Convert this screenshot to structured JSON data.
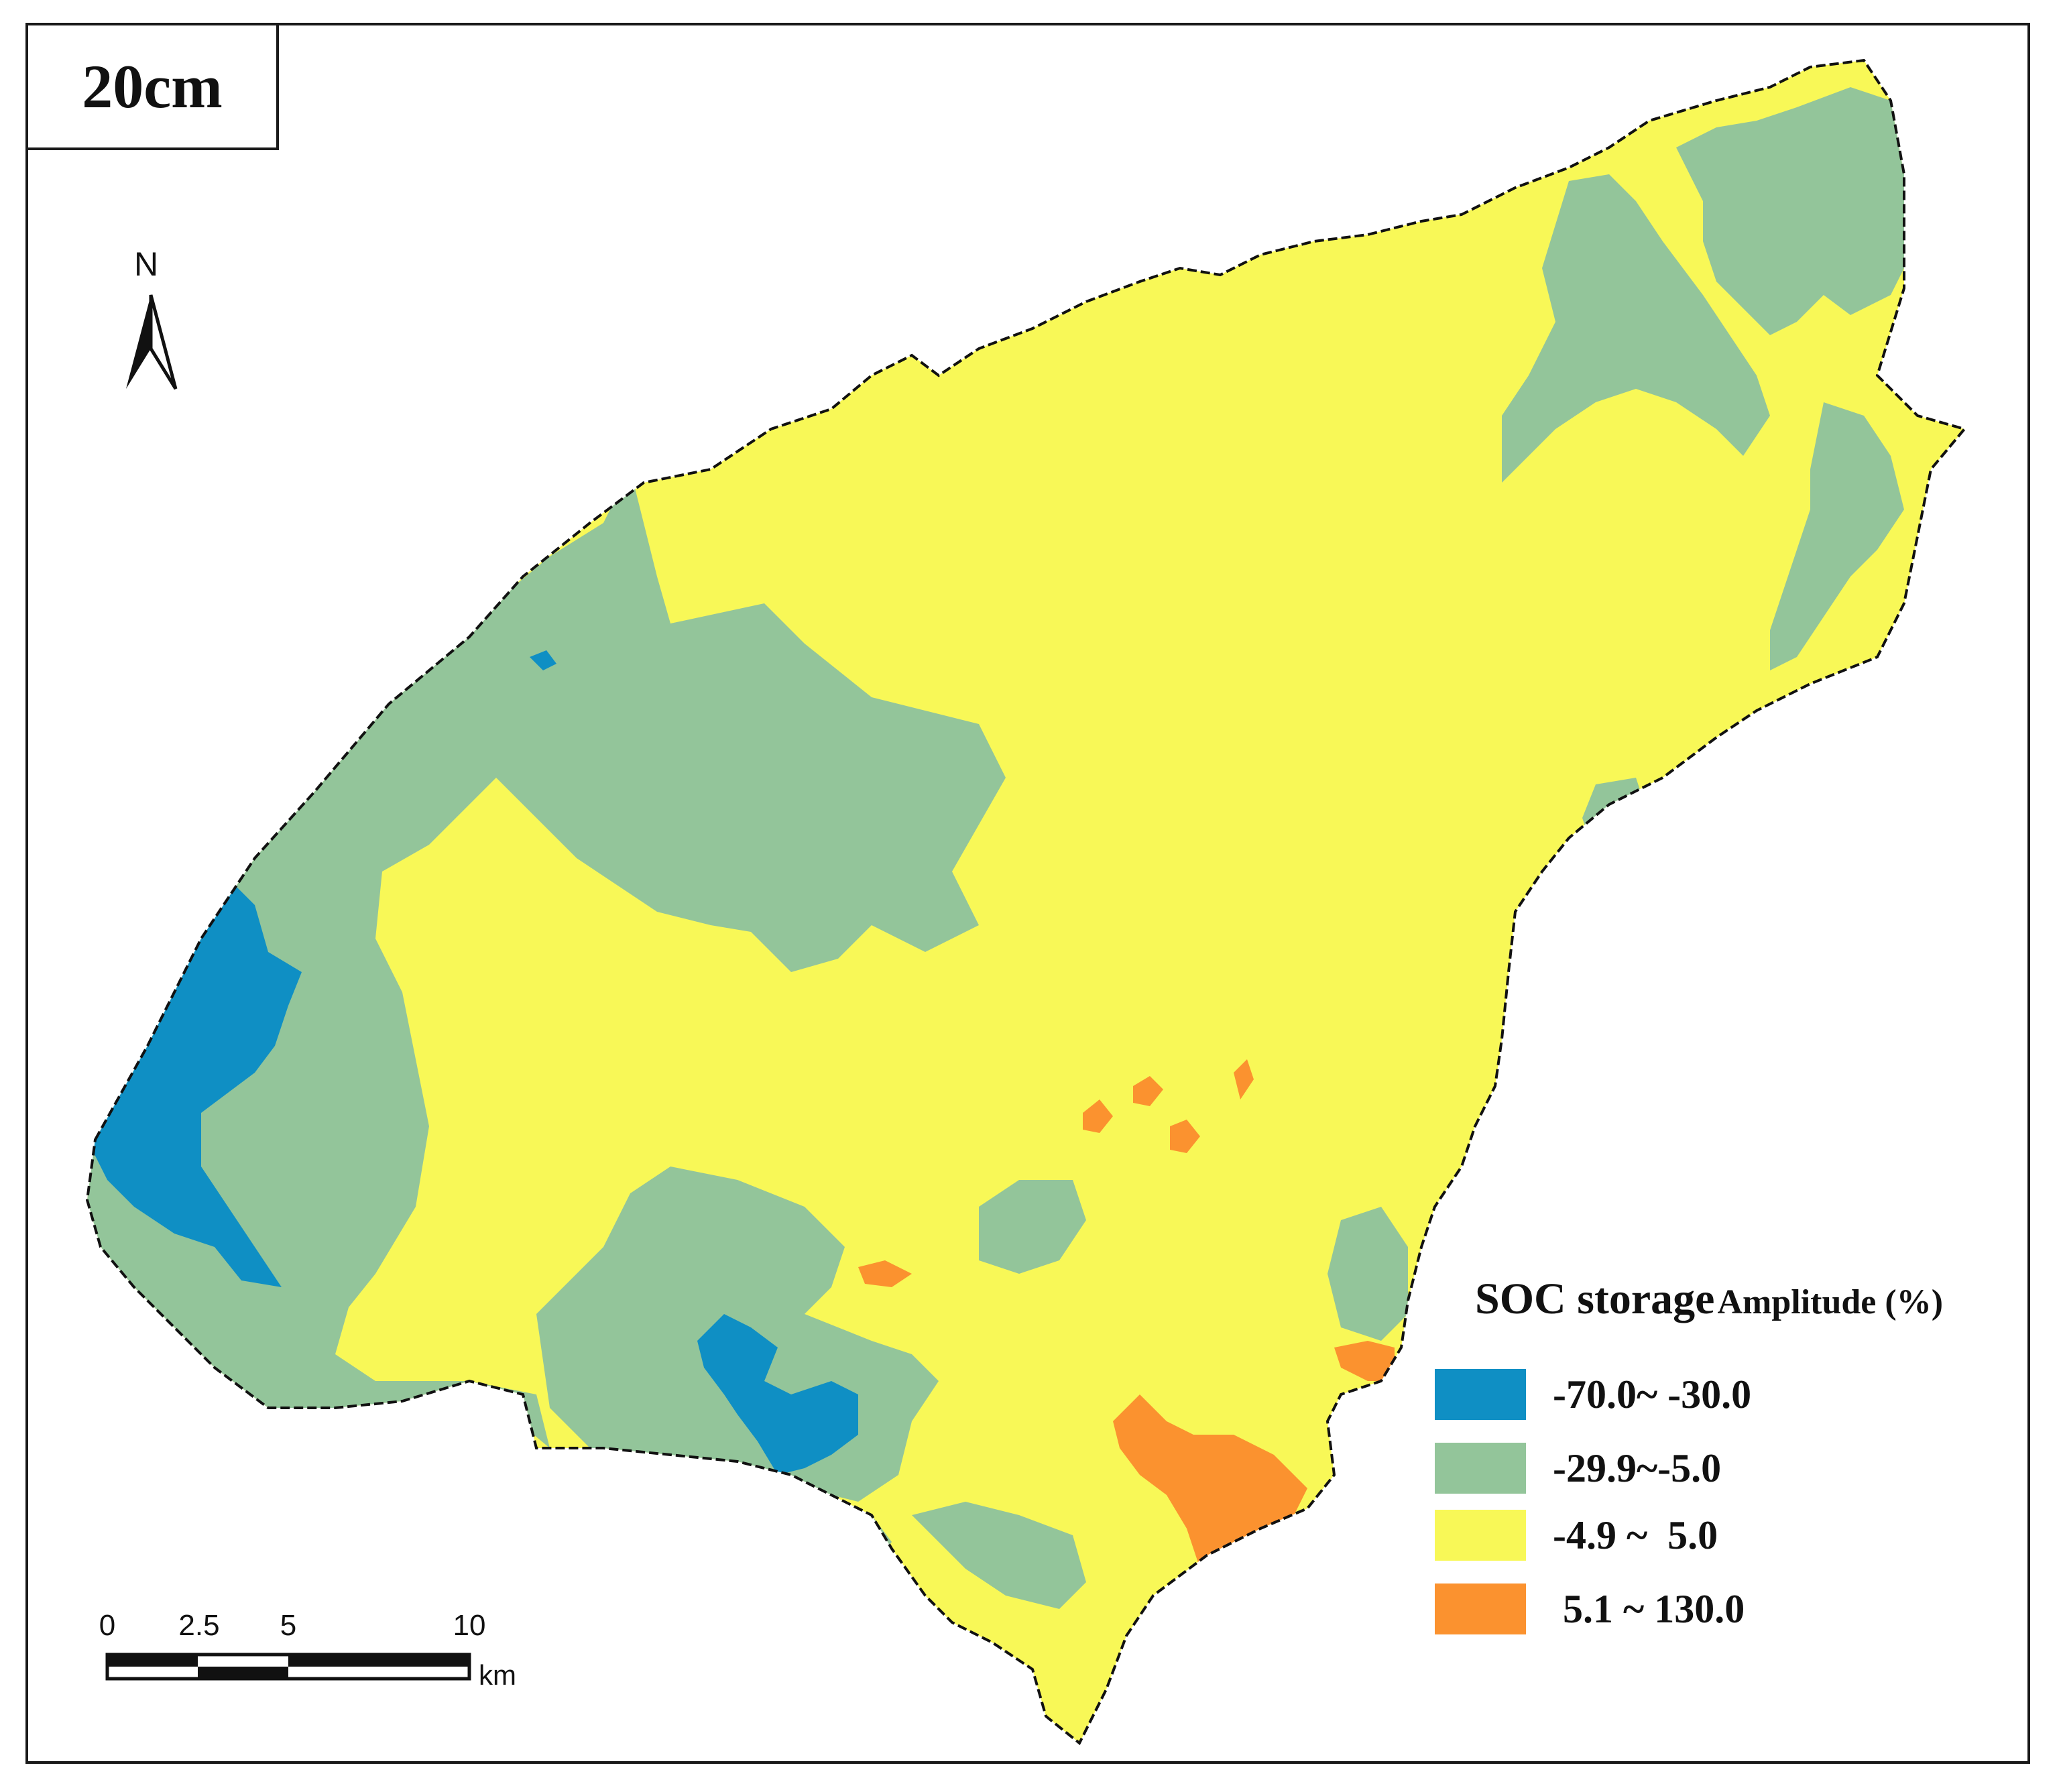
{
  "map": {
    "depth_label": "20cm",
    "north_label": "N",
    "scale_bar": {
      "ticks": [
        "0",
        "2.5",
        "5",
        "10"
      ],
      "unit": "km"
    },
    "legend": {
      "title_main": "SOC storage",
      "title_sub": "Amplitude (%)",
      "classes": [
        {
          "label": "-70.0~ -30.0",
          "color": "#0f8fc4"
        },
        {
          "label": "-29.9~-5.0",
          "color": "#93c59a"
        },
        {
          "label": "-4.9 ~  5.0",
          "color": "#f8f857"
        },
        {
          "label": " 5.1 ~ 130.0",
          "color": "#fb922f"
        }
      ]
    }
  }
}
